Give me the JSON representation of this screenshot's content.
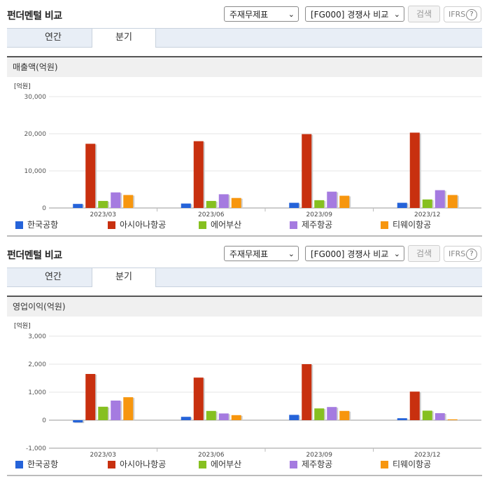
{
  "controls": {
    "statement_select": "주재무제표",
    "peer_select": "[FG000] 경쟁사 비교",
    "search_label": "검색",
    "ifrs_label": "IFRS",
    "help_glyph": "?"
  },
  "panels": [
    {
      "title": "펀더멘털 비교",
      "tabs": [
        "연간",
        "분기"
      ],
      "active_tab": "분기",
      "section_title": "매출액(억원)",
      "unit_label": "[억원]"
    },
    {
      "title": "펀더멘털 비교",
      "tabs": [
        "연간",
        "분기"
      ],
      "active_tab": "분기",
      "section_title": "영업이익(억원)",
      "unit_label": "[억원]"
    }
  ],
  "legend": [
    {
      "name": "한국공항",
      "color": "#2563d9"
    },
    {
      "name": "아시아나항공",
      "color": "#c8300f"
    },
    {
      "name": "에어부산",
      "color": "#86c020"
    },
    {
      "name": "제주항공",
      "color": "#a57be0"
    },
    {
      "name": "티웨이항공",
      "color": "#f7960e"
    }
  ],
  "chart_data": [
    {
      "type": "bar",
      "title": "매출액(억원)",
      "ylabel": "[억원]",
      "categories": [
        "2023/03",
        "2023/06",
        "2023/09",
        "2023/12"
      ],
      "ylim": [
        0,
        30000
      ],
      "yticks": [
        "0",
        "10,000",
        "20,000",
        "30,000"
      ],
      "ytick_values": [
        0,
        10000,
        20000,
        30000
      ],
      "grid": true,
      "legend_position": "bottom",
      "series": [
        {
          "name": "한국공항",
          "values": [
            1100,
            1200,
            1400,
            1400
          ]
        },
        {
          "name": "아시아나항공",
          "values": [
            17300,
            18000,
            19900,
            20300
          ]
        },
        {
          "name": "에어부산",
          "values": [
            1900,
            1900,
            2100,
            2300
          ]
        },
        {
          "name": "제주항공",
          "values": [
            4200,
            3700,
            4400,
            4800
          ]
        },
        {
          "name": "티웨이항공",
          "values": [
            3500,
            2700,
            3300,
            3500
          ]
        }
      ]
    },
    {
      "type": "bar",
      "title": "영업이익(억원)",
      "ylabel": "[억원]",
      "categories": [
        "2023/03",
        "2023/06",
        "2023/09",
        "2023/12"
      ],
      "ylim": [
        -1000,
        3000
      ],
      "yticks": [
        "-1,000",
        "0",
        "1,000",
        "2,000",
        "3,000"
      ],
      "ytick_values": [
        -1000,
        0,
        1000,
        2000,
        3000
      ],
      "grid": true,
      "legend_position": "bottom",
      "series": [
        {
          "name": "한국공항",
          "values": [
            -80,
            120,
            190,
            70
          ]
        },
        {
          "name": "아시아나항공",
          "values": [
            1650,
            1520,
            2000,
            1020
          ]
        },
        {
          "name": "에어부산",
          "values": [
            480,
            330,
            420,
            340
          ]
        },
        {
          "name": "제주항공",
          "values": [
            700,
            240,
            470,
            250
          ]
        },
        {
          "name": "티웨이항공",
          "values": [
            820,
            180,
            330,
            30
          ]
        }
      ]
    }
  ]
}
